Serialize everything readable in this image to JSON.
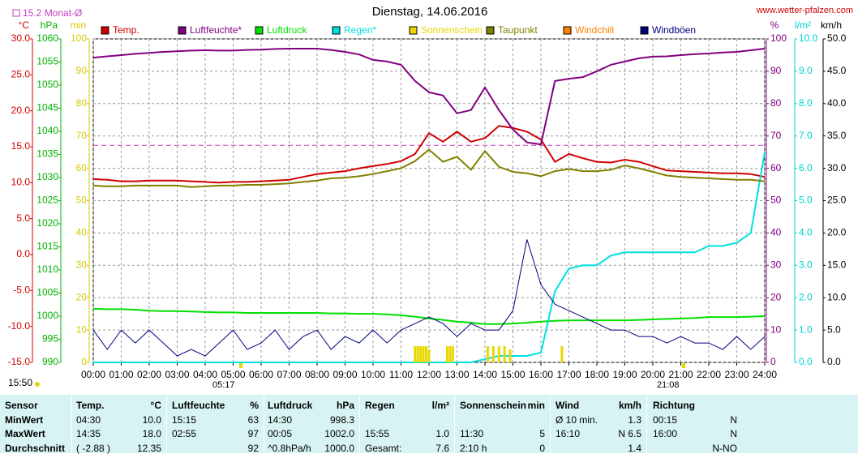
{
  "chart_data": {
    "type": "line",
    "title": "Dienstag, 14.06.2016",
    "source": "www.wetter-pfalzen.com",
    "month_avg": {
      "value": 15.2,
      "label": "15.2 Monat-Ø",
      "color": "#c040c0"
    },
    "time_now": "15:50",
    "sunrise": "05:17",
    "sunset": "21:08",
    "grid": true,
    "xlim": [
      0,
      24
    ],
    "xticks": [
      {
        "value": 0,
        "label": "00:00"
      },
      {
        "value": 1,
        "label": "01:00"
      },
      {
        "value": 2,
        "label": "02:00"
      },
      {
        "value": 3,
        "label": "03:00"
      },
      {
        "value": 4,
        "label": "04:00"
      },
      {
        "value": 5,
        "label": "05:00"
      },
      {
        "value": 6,
        "label": "06:00"
      },
      {
        "value": 7,
        "label": "07:00"
      },
      {
        "value": 8,
        "label": "08:00"
      },
      {
        "value": 9,
        "label": "09:00"
      },
      {
        "value": 10,
        "label": "10:00"
      },
      {
        "value": 11,
        "label": "11:00"
      },
      {
        "value": 12,
        "label": "12:00"
      },
      {
        "value": 13,
        "label": "13:00"
      },
      {
        "value": 14,
        "label": "14:00"
      },
      {
        "value": 15,
        "label": "15:00"
      },
      {
        "value": 16,
        "label": "16:00"
      },
      {
        "value": 17,
        "label": "17:00"
      },
      {
        "value": 18,
        "label": "18:00"
      },
      {
        "value": 19,
        "label": "19:00"
      },
      {
        "value": 20,
        "label": "20:00"
      },
      {
        "value": 21,
        "label": "21:00"
      },
      {
        "value": 22,
        "label": "22:00"
      },
      {
        "value": 23,
        "label": "23:00"
      },
      {
        "value": 24,
        "label": "24:00"
      }
    ],
    "axes": [
      {
        "label": "°C",
        "color": "#d00000",
        "side": "left",
        "lim": [
          -15,
          30
        ],
        "ticks": [
          {
            "value": 30,
            "label": "30.0"
          },
          {
            "value": 25,
            "label": "25.0"
          },
          {
            "value": 20,
            "label": "20.0"
          },
          {
            "value": 15,
            "label": "15.0"
          },
          {
            "value": 10,
            "label": "10.0"
          },
          {
            "value": 5,
            "label": "5.0"
          },
          {
            "value": 0,
            "label": "0.0"
          },
          {
            "value": -5,
            "label": "-5.0"
          },
          {
            "value": -10,
            "label": "-10.0"
          },
          {
            "value": -15,
            "label": "-15.0"
          }
        ]
      },
      {
        "label": "hPa",
        "color": "#00b000",
        "side": "left",
        "lim": [
          990,
          1060
        ],
        "ticks": [
          1060,
          1055,
          1050,
          1045,
          1040,
          1035,
          1030,
          1025,
          1020,
          1015,
          1010,
          1005,
          1000,
          995,
          990
        ]
      },
      {
        "label": "min",
        "color": "#d8c800",
        "side": "left",
        "lim": [
          0,
          100
        ],
        "ticks": [
          100,
          90,
          80,
          70,
          60,
          50,
          40,
          30,
          20,
          10,
          0
        ]
      },
      {
        "label": "%",
        "color": "#800080",
        "side": "right",
        "lim": [
          0,
          100
        ],
        "grid": true,
        "ticks": [
          100,
          90,
          80,
          70,
          60,
          50,
          40,
          30,
          20,
          10,
          0
        ]
      },
      {
        "label": "l/m²",
        "color": "#00d0d0",
        "side": "right",
        "lim": [
          0,
          10
        ],
        "ticks": [
          {
            "value": 10,
            "label": "10.0"
          },
          {
            "value": 9,
            "label": "9.0"
          },
          {
            "value": 8,
            "label": "8.0"
          },
          {
            "value": 7,
            "label": "7.0"
          },
          {
            "value": 6,
            "label": "6.0"
          },
          {
            "value": 5,
            "label": "5.0"
          },
          {
            "value": 4,
            "label": "4.0"
          },
          {
            "value": 3,
            "label": "3.0"
          },
          {
            "value": 2,
            "label": "2.0"
          },
          {
            "value": 1,
            "label": "1.0"
          },
          {
            "value": 0,
            "label": "0.0"
          }
        ]
      },
      {
        "label": "km/h",
        "color": "#000000",
        "side": "right",
        "lim": [
          0,
          50
        ],
        "ticks": [
          {
            "value": 50,
            "label": "50.0"
          },
          {
            "value": 45,
            "label": "45.0"
          },
          {
            "value": 40,
            "label": "40.0"
          },
          {
            "value": 35,
            "label": "35.0"
          },
          {
            "value": 30,
            "label": "30.0"
          },
          {
            "value": 25,
            "label": "25.0"
          },
          {
            "value": 20,
            "label": "20.0"
          },
          {
            "value": 15,
            "label": "15.0"
          },
          {
            "value": 10,
            "label": "10.0"
          },
          {
            "value": 5,
            "label": "5.0"
          },
          {
            "value": 0,
            "label": "0.0"
          }
        ]
      }
    ],
    "x": [
      0,
      0.5,
      1,
      1.5,
      2,
      2.5,
      3,
      3.5,
      4,
      4.5,
      5,
      5.5,
      6,
      6.5,
      7,
      7.5,
      8,
      8.5,
      9,
      9.5,
      10,
      10.5,
      11,
      11.5,
      12,
      12.5,
      13,
      13.5,
      14,
      14.5,
      15,
      15.5,
      16,
      16.5,
      17,
      17.5,
      18,
      18.5,
      19,
      19.5,
      20,
      20.5,
      21,
      21.5,
      22,
      22.5,
      23,
      23.5,
      24
    ],
    "series": [
      {
        "name": "Temp.",
        "color": "#d00000",
        "axis": 0,
        "values": [
          10.5,
          10.4,
          10.2,
          10.2,
          10.3,
          10.3,
          10.3,
          10.2,
          10.1,
          10.0,
          10.1,
          10.1,
          10.2,
          10.3,
          10.4,
          10.8,
          11.2,
          11.4,
          11.6,
          12.0,
          12.3,
          12.6,
          13.0,
          14.0,
          16.9,
          15.7,
          17.1,
          15.7,
          16.2,
          17.9,
          17.6,
          17.1,
          16.0,
          12.9,
          14.0,
          13.4,
          12.9,
          12.8,
          13.2,
          12.9,
          12.3,
          11.7,
          11.6,
          11.5,
          11.4,
          11.3,
          11.3,
          11.2,
          10.8
        ]
      },
      {
        "name": "Luftfeuchte*",
        "color": "#800080",
        "axis": 3,
        "values": [
          94.2,
          94.6,
          95.0,
          95.4,
          95.7,
          96.0,
          96.2,
          96.4,
          96.5,
          96.4,
          96.4,
          96.6,
          96.7,
          96.9,
          97,
          97,
          97,
          96.6,
          96.0,
          95.2,
          93.5,
          93.0,
          92.0,
          87.0,
          83.5,
          82.5,
          77.0,
          78.0,
          85.0,
          78.0,
          72.0,
          68.0,
          67.4,
          87.0,
          87.7,
          88.2,
          90.0,
          92.0,
          93.0,
          94.0,
          94.5,
          94.6,
          95.0,
          95.3,
          95.5,
          95.8,
          96.0,
          96.5,
          97.0
        ]
      },
      {
        "name": "Luftdruck",
        "color": "#00e000",
        "axis": 1,
        "values": [
          1001.6,
          1001.5,
          1001.5,
          1001.4,
          1001.2,
          1001.1,
          1001.1,
          1001.0,
          1000.9,
          1000.8,
          1000.8,
          1000.7,
          1000.7,
          1000.7,
          1000.7,
          1000.7,
          1000.7,
          1000.6,
          1000.6,
          1000.5,
          1000.5,
          1000.4,
          1000.2,
          999.9,
          999.5,
          999.2,
          998.8,
          998.6,
          998.3,
          998.3,
          998.4,
          998.6,
          998.8,
          999.0,
          999.1,
          999.1,
          999.1,
          999.1,
          999.1,
          999.2,
          999.3,
          999.4,
          999.5,
          999.6,
          999.8,
          999.8,
          999.8,
          999.9,
          1000.0
        ]
      },
      {
        "name": "Regen*",
        "color": "#00e0e0",
        "axis": 4,
        "values": [
          0,
          0,
          0,
          0,
          0,
          0,
          0,
          0,
          0,
          0,
          0,
          0,
          0,
          0,
          0,
          0,
          0,
          0,
          0,
          0,
          0,
          0,
          0,
          0,
          0,
          0,
          0,
          0,
          0.1,
          0.2,
          0.2,
          0.2,
          0.3,
          2.2,
          2.9,
          3.0,
          3.0,
          3.3,
          3.4,
          3.4,
          3.4,
          3.4,
          3.4,
          3.4,
          3.6,
          3.6,
          3.7,
          4.0,
          6.5
        ]
      },
      {
        "name": "Sonnenschein",
        "color": "#e8d800",
        "axis": 2,
        "kind": "bar",
        "x": [
          11.5,
          11.6,
          11.7,
          11.8,
          11.9,
          12.0,
          12.65,
          12.75,
          12.85,
          14.1,
          14.3,
          14.5,
          14.7,
          14.9,
          16.75
        ],
        "values": [
          5,
          5,
          5,
          5,
          5,
          4,
          5,
          5,
          5,
          5,
          5,
          5,
          5,
          4,
          5
        ]
      },
      {
        "name": "Taupunkt",
        "color": "#808000",
        "axis": 0,
        "values": [
          9.6,
          9.5,
          9.5,
          9.6,
          9.6,
          9.6,
          9.6,
          9.4,
          9.5,
          9.6,
          9.6,
          9.7,
          9.7,
          9.8,
          9.9,
          10.1,
          10.3,
          10.6,
          10.7,
          10.9,
          11.2,
          11.6,
          12.0,
          13.0,
          14.6,
          12.9,
          13.6,
          11.8,
          14.4,
          12.2,
          11.5,
          11.3,
          10.9,
          11.6,
          11.9,
          11.6,
          11.6,
          11.8,
          12.4,
          12.0,
          11.5,
          11.0,
          10.8,
          10.7,
          10.6,
          10.5,
          10.4,
          10.4,
          10.2
        ]
      },
      {
        "name": "Windchill",
        "color": "#ff8000",
        "axis": 0,
        "kind": "legend"
      },
      {
        "name": "Windböen",
        "color": "#000080",
        "axis": 5,
        "values": [
          5,
          2,
          5,
          3,
          5,
          3,
          1,
          2,
          1,
          3,
          5,
          2,
          3,
          5,
          2,
          4,
          5,
          2,
          4,
          3,
          5,
          3,
          5,
          6,
          7,
          6,
          4,
          6,
          5,
          5,
          8,
          19,
          12,
          9,
          8,
          7,
          6,
          5,
          5,
          4,
          4,
          3,
          4,
          3,
          3,
          2,
          4,
          2,
          4
        ]
      }
    ]
  },
  "table": {
    "rows": [
      [
        "Sensor",
        "Temp.",
        "°C",
        "Luftfeuchte",
        "%",
        "Luftdruck",
        "hPa",
        "Regen",
        "l/m²",
        "Sonnenschein",
        "min",
        "Wind",
        "km/h",
        "Richtung",
        null
      ],
      [
        "MinWert",
        "04:30",
        "10.0",
        "15:15",
        "63",
        "14:30",
        "998.3",
        null,
        null,
        null,
        null,
        "Ø 10 min.",
        "1.3",
        "00:15",
        "N"
      ],
      [
        "MaxWert",
        "14:35",
        "18.0",
        "02:55",
        "97",
        "00:05",
        "1002.0",
        "15:55",
        "1.0",
        "11:30",
        "5",
        "16:10",
        "N 6.5",
        "16:00",
        "N"
      ],
      [
        "Durchschnitt",
        "( -2.88 )",
        "12.35",
        null,
        "92",
        "^0.8hPa/h",
        "1000.0",
        "Gesamt:",
        "7.6",
        "2:10 h",
        "0",
        null,
        "1.4",
        null,
        "N-NO"
      ]
    ]
  }
}
